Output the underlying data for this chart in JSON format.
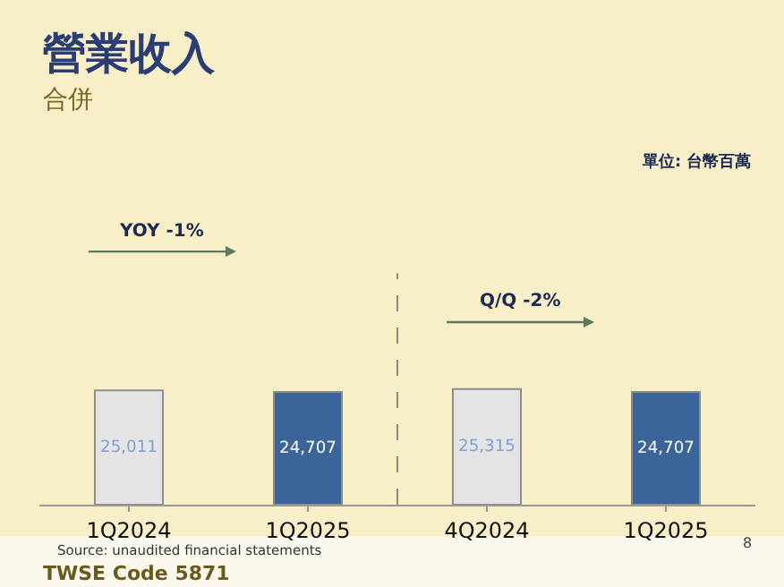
{
  "chart_data": {
    "type": "bar",
    "title": "營業收入",
    "subtitle": "合併",
    "categories": [
      "1Q2024",
      "1Q2025",
      "4Q2024",
      "1Q2025"
    ],
    "values": [
      25011,
      24707,
      25315,
      24707
    ],
    "value_labels": [
      "25,011",
      "24,707",
      "25,315",
      "24,707"
    ],
    "colors": [
      "#e4e4e4",
      "#3b6499",
      "#e4e4e4",
      "#3b6499"
    ],
    "grid": false,
    "legend": false,
    "annotations": [
      "單位: 台幣百萬",
      "YOY -1%",
      "Q/Q -2%",
      "Source: unaudited financial statements",
      "TWSE Code 5871",
      "8"
    ]
  }
}
